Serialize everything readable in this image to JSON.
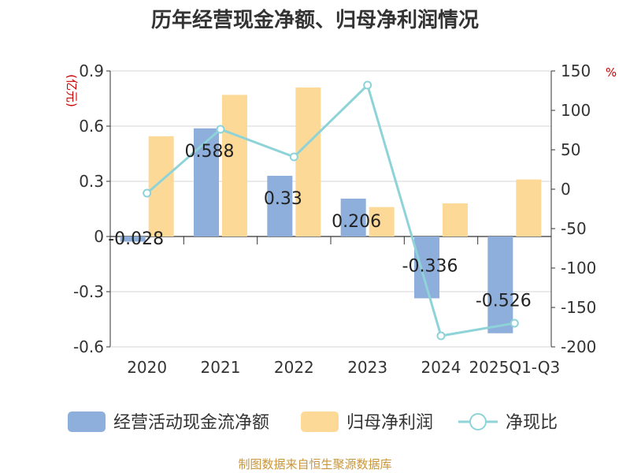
{
  "chart_data": {
    "type": "bar",
    "title": "历年经营现金净额、归母净利润情况",
    "categories": [
      "2020",
      "2021",
      "2022",
      "2023",
      "2024",
      "2025Q1-Q3"
    ],
    "y_left": {
      "unit": "(亿元)",
      "ylim": [
        -0.6,
        0.9
      ],
      "ticks": [
        "0.9",
        "0.6",
        "0.3",
        "0",
        "-0.3",
        "-0.6"
      ],
      "tick_values": [
        0.9,
        0.6,
        0.3,
        0,
        -0.3,
        -0.6
      ]
    },
    "y_right": {
      "unit": "%",
      "ylim": [
        -200,
        150
      ],
      "ticks": [
        "150",
        "100",
        "50",
        "0",
        "-50",
        "-100",
        "-150",
        "-200"
      ],
      "tick_values": [
        150,
        100,
        50,
        0,
        -50,
        -100,
        -150,
        -200
      ]
    },
    "series": [
      {
        "name": "经营活动现金流净额",
        "kind": "bar",
        "axis": "left",
        "color": "#8eaedb",
        "values": [
          -0.028,
          0.588,
          0.33,
          0.206,
          -0.336,
          -0.526
        ],
        "labels": [
          "-0.028",
          "0.588",
          "0.33",
          "0.206",
          "-0.336",
          "-0.526"
        ]
      },
      {
        "name": "归母净利润",
        "kind": "bar",
        "axis": "left",
        "color": "#fdd998",
        "values": [
          0.545,
          0.77,
          0.81,
          0.16,
          0.18,
          0.31
        ]
      },
      {
        "name": "净现比",
        "kind": "line",
        "axis": "right",
        "color": "#8dd3d8",
        "values": [
          -5,
          76,
          41,
          132,
          -186,
          -170
        ]
      }
    ],
    "grid": true,
    "legend_position": "bottom"
  },
  "source": "制图数据来自恒生聚源数据库"
}
